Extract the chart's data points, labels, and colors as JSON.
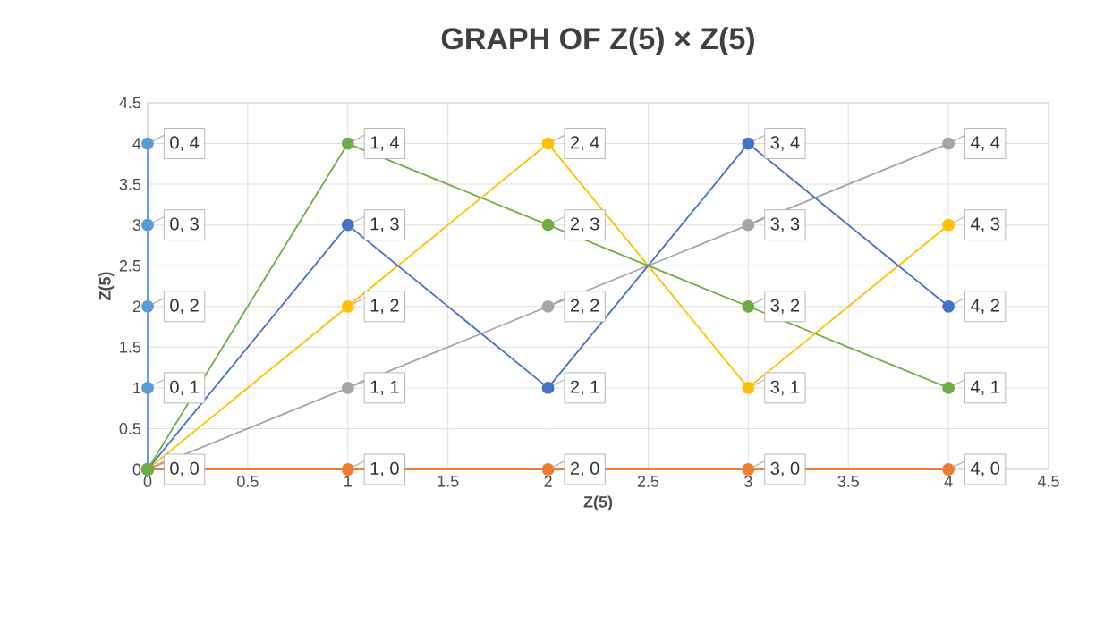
{
  "chart_data": {
    "type": "line",
    "title": "GRAPH OF Z(5) × Z(5)",
    "xlabel": "Z(5)",
    "ylabel": "Z(5)",
    "xlim": [
      0,
      4.5
    ],
    "ylim": [
      0,
      4.5
    ],
    "xticks": [
      0,
      0.5,
      1,
      1.5,
      2,
      2.5,
      3,
      3.5,
      4,
      4.5
    ],
    "yticks": [
      0,
      0.5,
      1,
      1.5,
      2,
      2.5,
      3,
      3.5,
      4,
      4.5
    ],
    "grid": true,
    "marker": "circle",
    "line_style": "solid",
    "series": [
      {
        "color": "#5b9bd5",
        "x": [
          0,
          0,
          0,
          0,
          0
        ],
        "values": [
          0,
          1,
          2,
          3,
          4
        ],
        "value_labels": [
          null,
          "0, 1",
          "0, 2",
          "0, 3",
          "0, 4"
        ]
      },
      {
        "color": "#ed7d31",
        "x": [
          0,
          1,
          2,
          3,
          4
        ],
        "values": [
          0,
          0,
          0,
          0,
          0
        ],
        "value_labels": [
          null,
          "1, 0",
          "2, 0",
          "3, 0",
          "4, 0"
        ]
      },
      {
        "color": "#a5a5a5",
        "x": [
          0,
          1,
          2,
          3,
          4
        ],
        "values": [
          0,
          1,
          2,
          3,
          4
        ],
        "value_labels": [
          null,
          "1, 1",
          "2, 2",
          "3, 3",
          "4, 4"
        ]
      },
      {
        "color": "#ffc000",
        "x": [
          0,
          1,
          2,
          3,
          4
        ],
        "values": [
          0,
          2,
          4,
          1,
          3
        ],
        "value_labels": [
          null,
          "1, 2",
          "2, 4",
          "3, 1",
          "4, 3"
        ]
      },
      {
        "color": "#4472c4",
        "x": [
          0,
          1,
          2,
          3,
          4
        ],
        "values": [
          0,
          3,
          1,
          4,
          2
        ],
        "value_labels": [
          null,
          "1, 3",
          "2, 1",
          "3, 4",
          "4, 2"
        ]
      },
      {
        "color": "#70ad47",
        "x": [
          0,
          1,
          2,
          3,
          4
        ],
        "values": [
          0,
          4,
          3,
          2,
          1
        ],
        "value_labels": [
          "0, 0",
          "1, 4",
          "2, 3",
          "3, 2",
          "4, 1"
        ]
      }
    ]
  }
}
